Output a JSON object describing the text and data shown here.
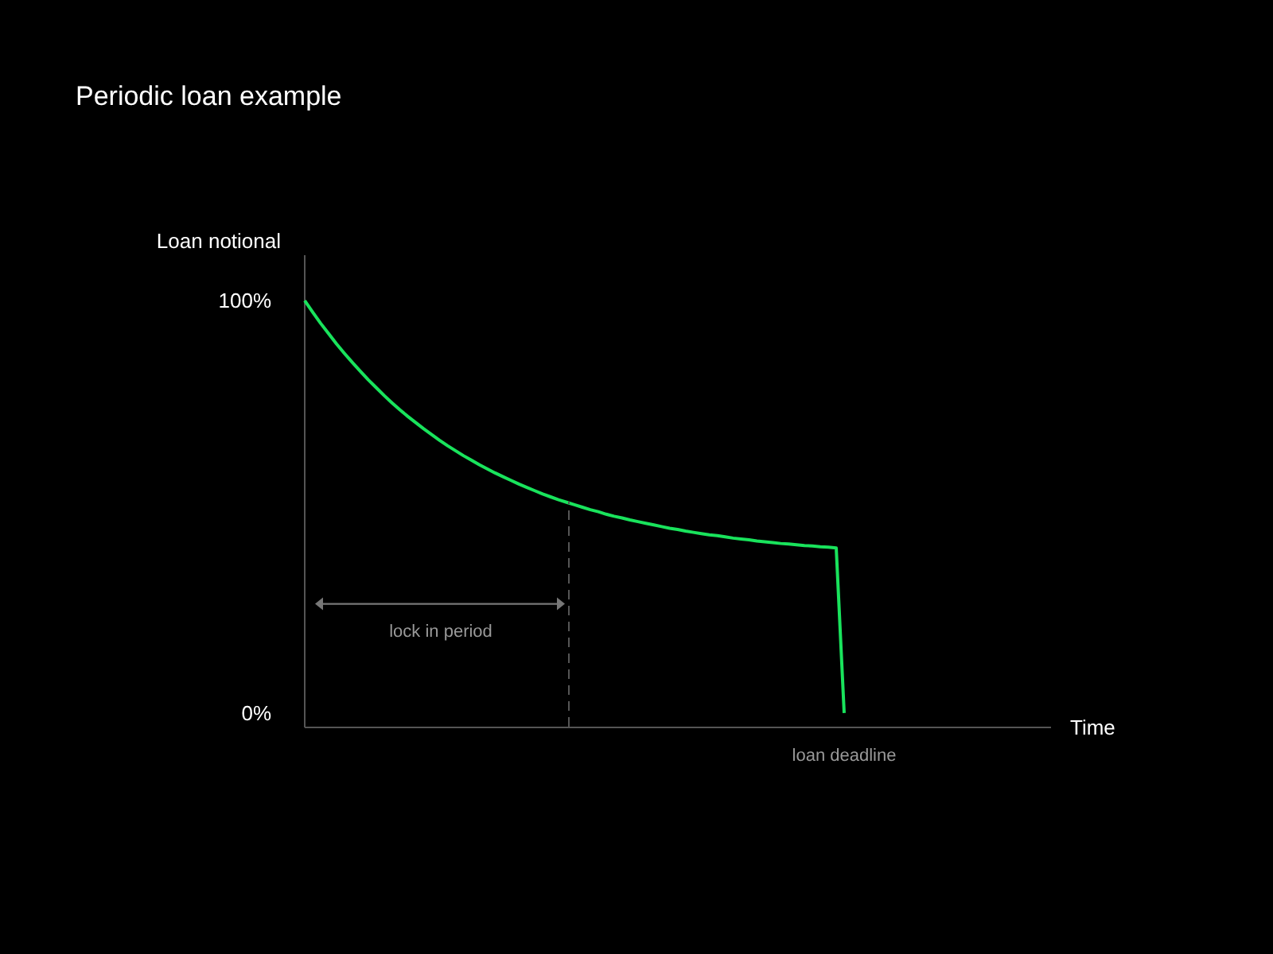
{
  "chart_data": {
    "type": "line",
    "title": "Periodic loan example",
    "ylabel": "Loan notional",
    "categories": [
      null,
      null,
      null,
      null,
      null,
      null,
      null,
      null,
      null,
      null,
      null,
      null,
      null,
      null,
      null,
      null,
      null,
      null,
      null,
      null,
      null,
      null,
      null,
      null,
      null,
      null,
      null,
      null,
      null,
      null,
      null,
      null,
      null,
      null,
      null,
      null,
      null,
      null,
      null,
      null,
      null,
      null,
      null,
      null,
      null,
      null,
      null,
      null,
      null,
      null,
      null,
      null,
      null,
      null,
      null,
      null,
      null,
      null,
      null,
      null,
      null,
      null,
      null,
      null,
      null,
      null,
      null,
      null,
      null
    ],
    "series": [
      {
        "color": "#19e35c",
        "values": [
          100,
          97.2,
          94.5,
          92.0,
          89.5,
          87.2,
          85.0,
          82.9,
          80.8,
          78.9,
          77.0,
          75.2,
          73.5,
          71.9,
          70.4,
          68.9,
          67.5,
          66.1,
          64.8,
          63.6,
          62.4,
          61.3,
          60.2,
          59.2,
          58.2,
          57.3,
          56.4,
          55.5,
          54.7,
          53.9,
          53.1,
          52.4,
          51.7,
          51.1,
          50.5,
          49.9,
          49.3,
          48.8,
          48.2,
          47.7,
          47.3,
          46.8,
          46.4,
          46.0,
          45.6,
          45.2,
          44.8,
          44.5,
          44.1,
          43.8,
          43.5,
          43.2,
          43.0,
          42.7,
          42.4,
          42.2,
          42.0,
          41.7,
          41.5,
          41.3,
          41.1,
          41.0,
          40.8,
          40.6,
          40.5,
          40.3,
          40.2,
          40.0,
          0
        ]
      }
    ],
    "ylim": [
      -3.5,
      111
    ],
    "yticks": [
      {
        "value": 0,
        "label": "0%"
      },
      {
        "value": 100,
        "label": "100%"
      }
    ],
    "tick_labels": "y",
    "grid": false,
    "marker": "none",
    "line_style": "solid",
    "annotations": [
      "lock in period",
      "loan deadline",
      "Time"
    ]
  }
}
